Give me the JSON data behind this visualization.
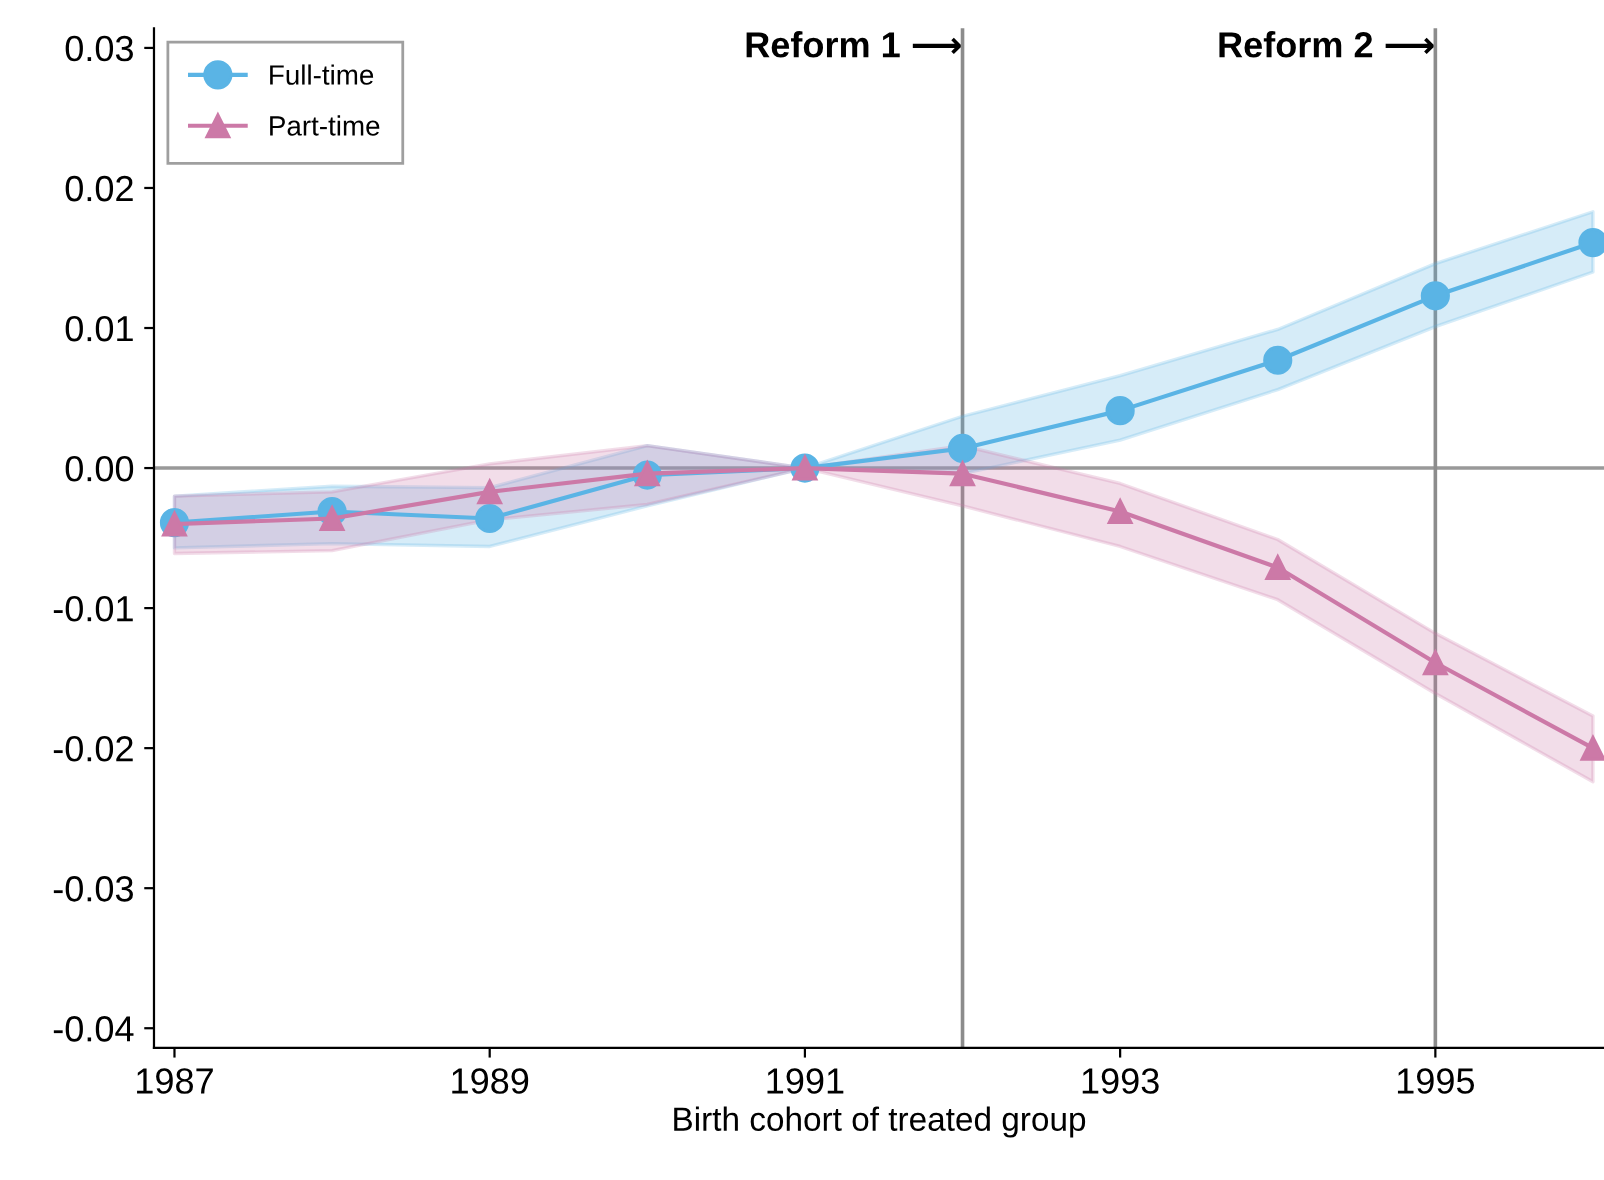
{
  "chart_data": {
    "type": "line",
    "xlabel": "Birth cohort of treated group",
    "x": [
      1987,
      1988,
      1989,
      1990,
      1991,
      1992,
      1993,
      1994,
      1995,
      1996
    ],
    "series": [
      {
        "name": "Full-time",
        "color": "#5ab4e5",
        "marker": "circle",
        "values": [
          -0.0039,
          -0.0031,
          -0.0036,
          -0.0005,
          0.0,
          0.0014,
          0.0041,
          0.0077,
          0.0123,
          0.0161
        ],
        "lower": [
          -0.0057,
          -0.0054,
          -0.0056,
          -0.0027,
          0.0,
          -0.0004,
          0.002,
          0.0056,
          0.0101,
          0.014
        ],
        "upper": [
          -0.002,
          -0.0013,
          -0.0014,
          0.0016,
          0.0,
          0.0037,
          0.0066,
          0.0099,
          0.0146,
          0.0183
        ]
      },
      {
        "name": "Part-time",
        "color": "#cc79a7",
        "marker": "triangle",
        "values": [
          -0.004,
          -0.0036,
          -0.0017,
          -0.0004,
          0.0,
          -0.0004,
          -0.0031,
          -0.0071,
          -0.0139,
          -0.02
        ],
        "lower": [
          -0.0061,
          -0.0059,
          -0.0037,
          -0.0026,
          0.0,
          -0.0027,
          -0.0056,
          -0.0094,
          -0.0161,
          -0.0224
        ],
        "upper": [
          -0.002,
          -0.0017,
          0.0003,
          0.0016,
          0.0,
          0.0016,
          -0.0011,
          -0.0051,
          -0.0118,
          -0.0177
        ]
      }
    ],
    "xlim": [
      1986.87,
      1996.07
    ],
    "xticks": [
      1987,
      1989,
      1991,
      1993,
      1995
    ],
    "ylim": [
      -0.0414,
      0.0314
    ],
    "yticks": [
      {
        "value": -0.04,
        "label": "-0.04"
      },
      {
        "value": -0.03,
        "label": "-0.03"
      },
      {
        "value": -0.02,
        "label": "-0.02"
      },
      {
        "value": -0.01,
        "label": "-0.01"
      },
      {
        "value": 0.0,
        "label": "0.00"
      },
      {
        "value": 0.01,
        "label": "0.01"
      },
      {
        "value": 0.02,
        "label": "0.02"
      },
      {
        "value": 0.03,
        "label": "0.03"
      }
    ],
    "ref_lines": [
      {
        "axis": "y",
        "value": 0,
        "color": "#999999"
      },
      {
        "axis": "x",
        "value": 1992,
        "color": "#8c8c8c"
      },
      {
        "axis": "x",
        "value": 1995,
        "color": "#8c8c8c"
      }
    ],
    "annotations": [
      {
        "text": "Reform 1 ⟶",
        "x": 1992,
        "y": 0.03
      },
      {
        "text": "Reform 2 ⟶",
        "x": 1995,
        "y": 0.03
      }
    ],
    "legend": "top left",
    "grid": false,
    "line_style": "solid"
  }
}
